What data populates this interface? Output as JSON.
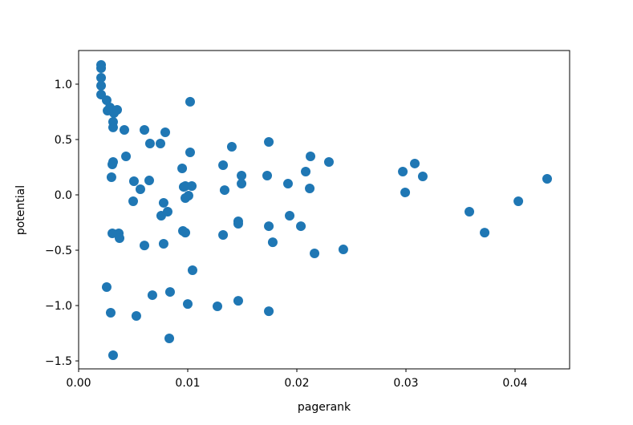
{
  "chart_data": {
    "type": "scatter",
    "xlabel": "pagerank",
    "ylabel": "potential",
    "color": "#1f77b4",
    "xlim": [
      0,
      0.045
    ],
    "ylim": [
      -1.572,
      1.304
    ],
    "xticks": [
      {
        "value": 0,
        "label": "0.00"
      },
      {
        "value": 0.01,
        "label": "0.01"
      },
      {
        "value": 0.02,
        "label": "0.02"
      },
      {
        "value": 0.03,
        "label": "0.03"
      },
      {
        "value": 0.04,
        "label": "0.04"
      }
    ],
    "yticks": [
      {
        "value": -1.5,
        "label": "−1.5"
      },
      {
        "value": -1,
        "label": "−1.0"
      },
      {
        "value": -0.5,
        "label": "−0.5"
      },
      {
        "value": 0,
        "label": "0.0"
      },
      {
        "value": 0.5,
        "label": "0.5"
      },
      {
        "value": 1,
        "label": "1.0"
      }
    ],
    "x": [
      0.00206,
      0.00206,
      0.00206,
      0.00206,
      0.00206,
      0.00257,
      0.00265,
      0.00287,
      0.00324,
      0.00353,
      0.00316,
      0.00316,
      0.00419,
      0.00309,
      0.00316,
      0.00301,
      0.00434,
      0.00507,
      0.005,
      0.00566,
      0.00647,
      0.00603,
      0.00654,
      0.0075,
      0.00794,
      0.01022,
      0.01022,
      0.00949,
      0.00963,
      0.00978,
      0.01037,
      0.00978,
      0.01007,
      0.00779,
      0.00757,
      0.00816,
      0.00956,
      0.00978,
      0.00779,
      0.00603,
      0.00368,
      0.00309,
      0.00375,
      0.01324,
      0.01338,
      0.01404,
      0.01493,
      0.01493,
      0.01463,
      0.01463,
      0.01324,
      0.01743,
      0.01728,
      0.01743,
      0.01779,
      0.01919,
      0.01934,
      0.02081,
      0.02125,
      0.02118,
      0.02037,
      0.02162,
      0.02294,
      0.02426,
      0.02971,
      0.03081,
      0.02993,
      0.03154,
      0.03581,
      0.03721,
      0.0403,
      0.04294,
      0.01044,
      0.00257,
      0.00294,
      0.00529,
      0.00676,
      0.00838,
      0.01,
      0.01272,
      0.01463,
      0.01743,
      0.00316,
      0.00831
    ],
    "y": [
      1.174,
      1.145,
      1.058,
      0.986,
      0.906,
      0.855,
      0.761,
      0.79,
      0.739,
      0.768,
      0.659,
      0.609,
      0.587,
      0.275,
      0.297,
      0.159,
      0.348,
      0.123,
      -0.058,
      0.051,
      0.13,
      0.587,
      0.464,
      0.464,
      0.565,
      0.841,
      0.384,
      0.239,
      0.072,
      0.08,
      0.08,
      -0.029,
      -0.007,
      -0.072,
      -0.188,
      -0.152,
      -0.326,
      -0.341,
      -0.442,
      -0.457,
      -0.348,
      -0.348,
      -0.391,
      0.268,
      0.043,
      0.435,
      0.174,
      0.101,
      -0.239,
      -0.261,
      -0.362,
      0.478,
      0.174,
      -0.283,
      -0.428,
      0.101,
      -0.188,
      0.21,
      0.348,
      0.058,
      -0.283,
      -0.529,
      0.297,
      -0.493,
      0.21,
      0.283,
      0.022,
      0.167,
      -0.152,
      -0.341,
      -0.058,
      0.145,
      -0.681,
      -0.833,
      -1.065,
      -1.094,
      -0.906,
      -0.877,
      -0.986,
      -1.007,
      -0.957,
      -1.051,
      -1.449,
      -1.297
    ]
  }
}
